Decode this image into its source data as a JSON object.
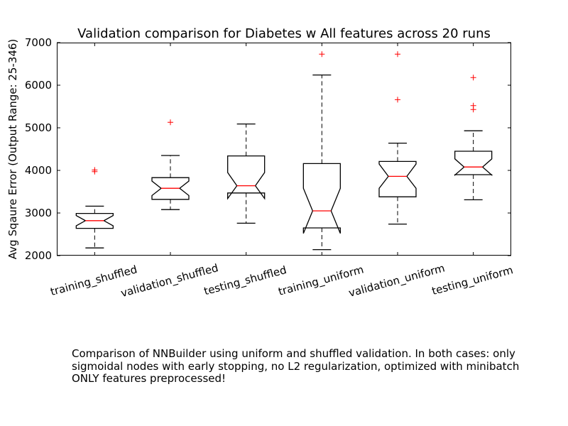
{
  "chart_data": {
    "type": "boxplot",
    "title": "Validation comparison for Diabetes w All features across 20 runs",
    "ylabel": "Avg Sqaure Error (Output Range: 25-346)",
    "ylim": [
      2000,
      7000
    ],
    "yticks": [
      2000,
      3000,
      4000,
      5000,
      6000,
      7000
    ],
    "notched": true,
    "colors": {
      "box": "#000000",
      "median": "#ff0000",
      "flier": "#ff0000"
    },
    "categories": [
      "training_shuffled",
      "validation_shuffled",
      "testing_shuffled",
      "training_uniform",
      "validation_uniform",
      "testing_uniform"
    ],
    "boxes": [
      {
        "name": "training_shuffled",
        "whisker_low": 2180,
        "q1": 2640,
        "median": 2820,
        "q3": 2990,
        "whisker_high": 3160,
        "notch_low": 2700,
        "notch_high": 2940,
        "fliers": [
          3970,
          4010
        ]
      },
      {
        "name": "validation_shuffled",
        "whisker_low": 3080,
        "q1": 3320,
        "median": 3580,
        "q3": 3830,
        "whisker_high": 4350,
        "notch_low": 3410,
        "notch_high": 3750,
        "fliers": [
          5130
        ]
      },
      {
        "name": "testing_shuffled",
        "whisker_low": 2760,
        "q1": 3470,
        "median": 3640,
        "q3": 4340,
        "whisker_high": 5090,
        "notch_low": 3340,
        "notch_high": 3950,
        "fliers": []
      },
      {
        "name": "training_uniform",
        "whisker_low": 2140,
        "q1": 2650,
        "median": 3050,
        "q3": 4160,
        "whisker_high": 6240,
        "notch_low": 2520,
        "notch_high": 3580,
        "fliers": [
          6730
        ]
      },
      {
        "name": "validation_uniform",
        "whisker_low": 2740,
        "q1": 3380,
        "median": 3860,
        "q3": 4210,
        "whisker_high": 4640,
        "notch_low": 3580,
        "notch_high": 4150,
        "fliers": [
          5660,
          6730
        ]
      },
      {
        "name": "testing_uniform",
        "whisker_low": 3310,
        "q1": 3900,
        "median": 4080,
        "q3": 4450,
        "whisker_high": 4930,
        "notch_low": 3890,
        "notch_high": 4270,
        "fliers": [
          5430,
          5520,
          6180
        ]
      }
    ]
  },
  "caption": {
    "line1": "Comparison of NNBuilder using uniform and shuffled validation. In both cases: only",
    "line2": "sigmoidal nodes with early stopping, no L2 regularization, optimized with minibatch",
    "line3": "ONLY features preprocessed!"
  }
}
